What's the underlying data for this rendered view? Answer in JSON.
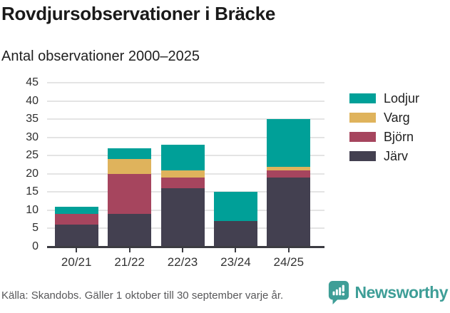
{
  "title": "Rovdjursobservationer i Bräcke",
  "subtitle": "Antal observationer 2000–2025",
  "chart_data": {
    "type": "bar",
    "stacked": true,
    "title": "Rovdjursobservationer i Bräcke",
    "xlabel": "",
    "ylabel": "Antal observationer",
    "categories": [
      "20/21",
      "21/22",
      "22/23",
      "23/24",
      "24/25"
    ],
    "series": [
      {
        "name": "Järv",
        "color": "#434050",
        "values": [
          6,
          9,
          16,
          7,
          19
        ]
      },
      {
        "name": "Björn",
        "color": "#A6455E",
        "values": [
          3,
          11,
          3,
          0,
          2
        ]
      },
      {
        "name": "Varg",
        "color": "#DFB35C",
        "values": [
          0,
          4,
          2,
          0,
          1
        ]
      },
      {
        "name": "Lodjur",
        "color": "#00A098",
        "values": [
          2,
          3,
          7,
          8,
          13
        ]
      }
    ],
    "totals": [
      11,
      27,
      28,
      15,
      35
    ],
    "ylim": [
      0,
      45
    ],
    "yticks": [
      0,
      5,
      10,
      15,
      20,
      25,
      30,
      35,
      40,
      45
    ],
    "grid": true,
    "legend_position": "right",
    "legend_order": [
      "Lodjur",
      "Varg",
      "Björn",
      "Järv"
    ]
  },
  "footer": {
    "source": "Källa: Skandobs. Gäller 1 oktober till 30 september varje år."
  },
  "branding": {
    "name": "Newsworthy",
    "logo_icon": "bar-chart-speech-bubble",
    "color": "#3E9E97"
  },
  "colors": {
    "grid": "#E4E4E4",
    "axis": "#3C3C42",
    "title_text": "#1a1a1a",
    "tick_text": "#333333",
    "source_text": "#58585A"
  }
}
